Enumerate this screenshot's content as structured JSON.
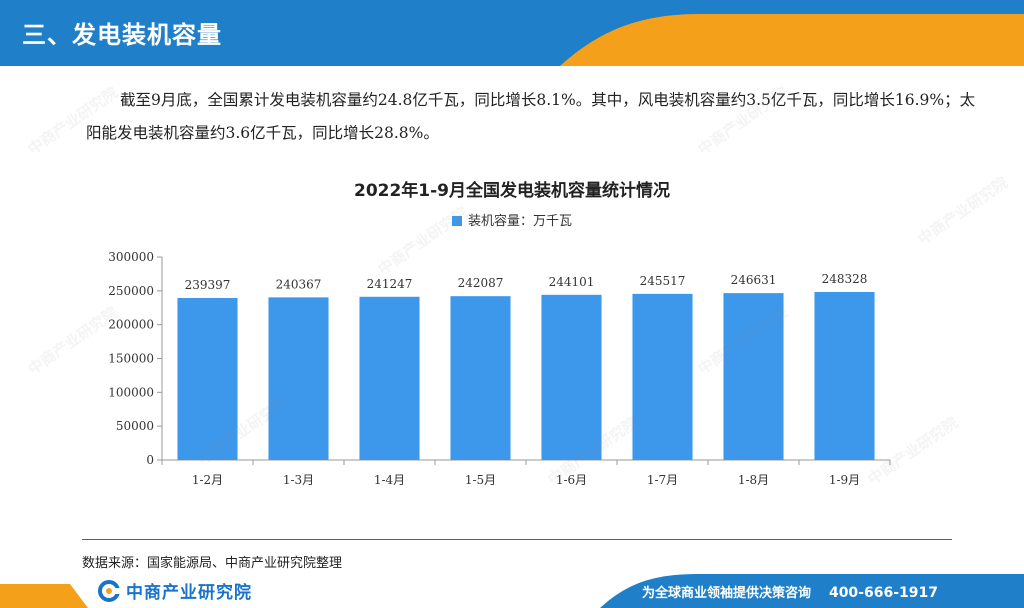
{
  "header": {
    "title": "三、发电装机容量"
  },
  "paragraph": "截至9月底，全国累计发电装机容量约24.8亿千瓦，同比增长8.1%。其中，风电装机容量约3.5亿千瓦，同比增长16.9%；太阳能发电装机容量约3.6亿千瓦，同比增长28.8%。",
  "chart_data": {
    "type": "bar",
    "title": "2022年1-9月全国发电装机容量统计情况",
    "categories": [
      "1-2月",
      "1-3月",
      "1-4月",
      "1-5月",
      "1-6月",
      "1-7月",
      "1-8月",
      "1-9月"
    ],
    "series": [
      {
        "name": "装机容量：万千瓦",
        "values": [
          239397,
          240367,
          241247,
          242087,
          244101,
          245517,
          246631,
          248328
        ]
      }
    ],
    "y_ticks": [
      0,
      50000,
      100000,
      150000,
      200000,
      250000,
      300000
    ],
    "ylim": [
      0,
      300000
    ],
    "color": "#3d97eb",
    "data_labels": true,
    "grid": false
  },
  "footer": {
    "source": "数据来源：国家能源局、中商产业研究院整理",
    "logo_text": "中商产业研究院",
    "slogan": "为全球商业领袖提供决策咨询",
    "phone": "400-666-1917"
  },
  "colors": {
    "brand_blue": "#1a73c9",
    "accent_orange": "#f5a01a",
    "bar": "#3d97eb"
  }
}
